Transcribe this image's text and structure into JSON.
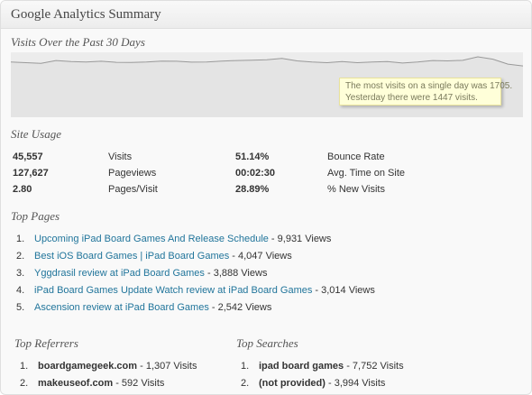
{
  "widget": {
    "title": "Google Analytics Summary"
  },
  "chart": {
    "title": "Visits Over the Past 30 Days",
    "tooltip_line1": "The most visits on a single day was 1705.",
    "tooltip_line2": "Yesterday there were 1447 visits.",
    "line_color": "#999999",
    "fill_color": "#ececec"
  },
  "chart_data": {
    "type": "area",
    "title": "Visits Over the Past 30 Days",
    "xlabel": "",
    "ylabel": "",
    "grid": false,
    "series": [
      {
        "values": [
          1560,
          1540,
          1520,
          1600,
          1570,
          1560,
          1580,
          1550,
          1545,
          1560,
          1585,
          1580,
          1555,
          1560,
          1585,
          1600,
          1610,
          1620,
          1660,
          1590,
          1560,
          1540,
          1570,
          1540,
          1560,
          1570,
          1530,
          1560,
          1600,
          1590,
          1605,
          1705,
          1640,
          1500,
          1447
        ]
      }
    ]
  },
  "site_usage": {
    "title": "Site Usage",
    "rows": [
      {
        "value1": "45,557",
        "label1": "Visits",
        "value2": "51.14%",
        "label2": "Bounce Rate"
      },
      {
        "value1": "127,627",
        "label1": "Pageviews",
        "value2": "00:02:30",
        "label2": "Avg. Time on Site"
      },
      {
        "value1": "2.80",
        "label1": "Pages/Visit",
        "value2": "28.89%",
        "label2": "% New Visits"
      }
    ]
  },
  "top_pages": {
    "title": "Top Pages",
    "items": [
      {
        "number": "1.",
        "link": "Upcoming iPad Board Games And Release Schedule",
        "count": " - 9,931 Views"
      },
      {
        "number": "2.",
        "link": "Best iOS Board Games | iPad Board Games",
        "count": " - 4,047 Views"
      },
      {
        "number": "3.",
        "link": "Yggdrasil review at iPad Board Games",
        "count": " - 3,888 Views"
      },
      {
        "number": "4.",
        "link": "iPad Board Games Update Watch review at iPad Board Games",
        "count": " - 3,014 Views"
      },
      {
        "number": "5.",
        "link": "Ascension review at iPad Board Games",
        "count": " - 2,542 Views"
      }
    ]
  },
  "top_referrers": {
    "title": "Top Referrers",
    "items": [
      {
        "number": "1.",
        "name": "boardgamegeek.com",
        "count": " - 1,307 Visits"
      },
      {
        "number": "2.",
        "name": "makeuseof.com",
        "count": " - 592 Visits"
      }
    ]
  },
  "top_searches": {
    "title": "Top Searches",
    "items": [
      {
        "number": "1.",
        "name": "ipad board games",
        "count": " - 7,752 Visits"
      },
      {
        "number": "2.",
        "name": "(not provided)",
        "count": " - 3,994 Visits"
      }
    ]
  }
}
